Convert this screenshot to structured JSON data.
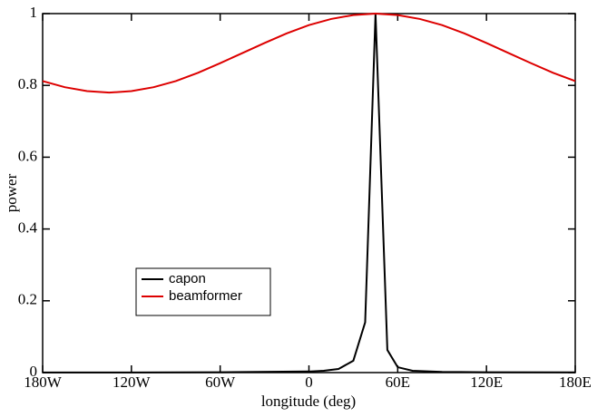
{
  "chart_data": {
    "type": "line",
    "xlabel": "longitude (deg)",
    "ylabel": "power",
    "xlim": [
      -180,
      180
    ],
    "xticks": [
      {
        "value": -180,
        "label": "180W"
      },
      {
        "value": -120,
        "label": "120W"
      },
      {
        "value": -60,
        "label": "60W"
      },
      0,
      {
        "value": 60,
        "label": "60E"
      },
      {
        "value": 120,
        "label": "120E"
      },
      {
        "value": 180,
        "label": "180E"
      }
    ],
    "ylim": [
      0,
      1
    ],
    "yticks": [
      0,
      0.2,
      0.4,
      0.6,
      0.8,
      1
    ],
    "legend": "lower-left",
    "series": [
      {
        "name": "capon",
        "color": "#000000",
        "x": [
          -180,
          -120,
          -60,
          0,
          10,
          20,
          30,
          38,
          45,
          53,
          60,
          70,
          90,
          120,
          180
        ],
        "values": [
          0.0003,
          0.0003,
          0.001,
          0.003,
          0.005,
          0.01,
          0.033,
          0.14,
          1,
          0.063,
          0.015,
          0.005,
          0.002,
          0.001,
          0.0005
        ]
      },
      {
        "name": "beamformer",
        "color": "#dd0000",
        "x": [
          -180,
          -165,
          -150,
          -135,
          -120,
          -105,
          -90,
          -75,
          -60,
          -45,
          -30,
          -15,
          0,
          15,
          30,
          45,
          60,
          75,
          90,
          105,
          120,
          135,
          150,
          165,
          180
        ],
        "values": [
          0.812,
          0.795,
          0.784,
          0.78,
          0.784,
          0.795,
          0.812,
          0.835,
          0.862,
          0.89,
          0.918,
          0.945,
          0.968,
          0.985,
          0.996,
          1,
          0.996,
          0.985,
          0.968,
          0.945,
          0.918,
          0.89,
          0.862,
          0.835,
          0.812
        ]
      }
    ]
  }
}
